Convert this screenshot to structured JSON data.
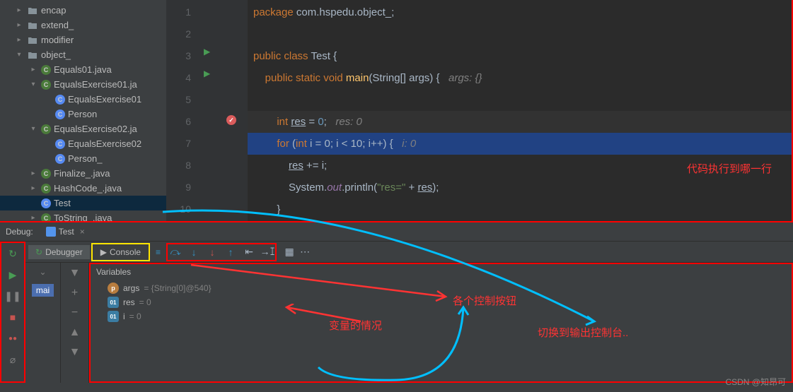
{
  "tree": {
    "items": [
      {
        "pad": "pad1",
        "arrow": "▸",
        "icon": "folder",
        "label": "encap"
      },
      {
        "pad": "pad1",
        "arrow": "▸",
        "icon": "folder",
        "label": "extend_"
      },
      {
        "pad": "pad1",
        "arrow": "▸",
        "icon": "folder",
        "label": "modifier"
      },
      {
        "pad": "pad1",
        "arrow": "▾",
        "icon": "folder",
        "label": "object_"
      },
      {
        "pad": "pad2",
        "arrow": "▸",
        "icon": "java",
        "label": "Equals01.java"
      },
      {
        "pad": "pad2",
        "arrow": "▾",
        "icon": "java",
        "label": "EqualsExercise01.ja"
      },
      {
        "pad": "pad3",
        "arrow": "",
        "icon": "class",
        "label": "EqualsExercise01"
      },
      {
        "pad": "pad3",
        "arrow": "",
        "icon": "class",
        "label": "Person"
      },
      {
        "pad": "pad2",
        "arrow": "▾",
        "icon": "java",
        "label": "EqualsExercise02.ja"
      },
      {
        "pad": "pad3",
        "arrow": "",
        "icon": "class",
        "label": "EqualsExercise02"
      },
      {
        "pad": "pad3",
        "arrow": "",
        "icon": "class",
        "label": "Person_"
      },
      {
        "pad": "pad2",
        "arrow": "▸",
        "icon": "java",
        "label": "Finalize_.java"
      },
      {
        "pad": "pad2",
        "arrow": "▸",
        "icon": "java",
        "label": "HashCode_.java"
      },
      {
        "pad": "pad2",
        "arrow": "",
        "icon": "class",
        "label": "Test",
        "selected": true
      },
      {
        "pad": "pad2",
        "arrow": "▸",
        "icon": "java",
        "label": "ToString_.java"
      }
    ]
  },
  "editor": {
    "lines": [
      "1",
      "2",
      "3",
      "4",
      "5",
      "6",
      "7",
      "8",
      "9",
      "10"
    ],
    "code": {
      "l1_pkg": "package ",
      "l1_path": "com.hspedu.object_",
      "l3_pub": "public class ",
      "l3_name": "Test ",
      "l4_mod": "public static ",
      "l4_void": "void ",
      "l4_main": "main",
      "l4_args": "(String[] args) {",
      "l4_hint": "args: {}",
      "l6_int": "int ",
      "l6_res": "res",
      "l6_eq": " = ",
      "l6_zero": "0",
      "l6_semi": ";",
      "l6_hint": "res: 0",
      "l7_for": "for ",
      "l7_open": "(",
      "l7_int": "int ",
      "l7_i": "i",
      "l7_rest": " = 0; i < 10; i++) {",
      "l7_hint": "i: 0",
      "l8_res": "res",
      "l8_rest": " += i;",
      "l9_sys": "System.",
      "l9_out": "out",
      "l9_dot": ".println(",
      "l9_str": "\"res=\"",
      "l9_plus": " + ",
      "l9_res": "res",
      "l9_end": ");",
      "l10": "}"
    }
  },
  "debug": {
    "title": "Debug:",
    "tab": "Test",
    "tabs": {
      "debugger": "Debugger",
      "console": "Console"
    },
    "frame": "mai",
    "varsTitle": "Variables",
    "vars": [
      {
        "badge": "p",
        "badgeClass": "badge-p",
        "name": "args",
        "val": " = {String[0]@540}"
      },
      {
        "badge": "01",
        "badgeClass": "badge-01",
        "name": "res",
        "val": " = 0"
      },
      {
        "badge": "01",
        "badgeClass": "badge-01",
        "name": "i",
        "val": " = 0"
      }
    ]
  },
  "annotations": {
    "a1": "代码执行到哪一行",
    "a2": "各个控制按钮",
    "a3": "变量的情况",
    "a4": "切换到输出控制台.."
  },
  "watermark": "CSDN @知昂可",
  "colors": {
    "kw": "#cc7832",
    "str": "#6a8759",
    "method": "#ffc66d",
    "num": "#6897bb",
    "comment": "#808080",
    "field": "#9876aa",
    "bg": "#2b2b2b",
    "sel": "#214283"
  }
}
